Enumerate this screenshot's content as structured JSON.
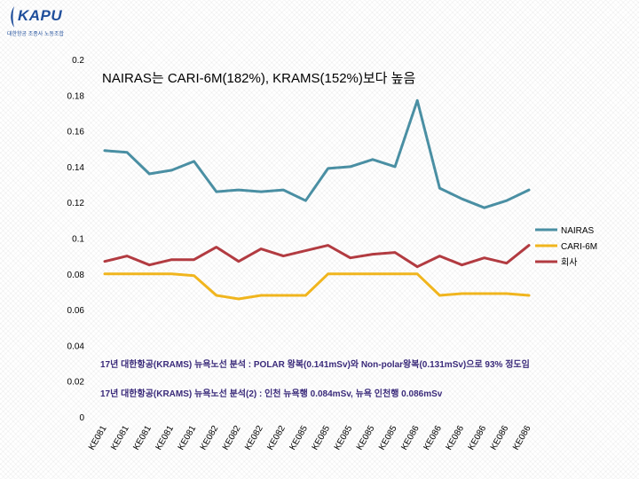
{
  "logo": {
    "text": "KAPU",
    "subtitle": "대한항공 조종사 노동조합"
  },
  "chart_data": {
    "type": "line",
    "title": "NAIRAS는 CARI-6M(182%), KRAMS(152%)보다 높음",
    "annotations": [
      "17년 대한항공(KRAMS) 뉴욕노선 분석 : POLAR 왕복(0.141mSv)와 Non-polar왕복(0.131mSv)으로 93% 정도임",
      "17년 대한항공(KRAMS) 뉴욕노선 분석(2) : 인천 뉴욕행 0.084mSv, 뉴욕 인천행 0.086mSv"
    ],
    "ylim": [
      0,
      0.2
    ],
    "yticks": [
      "0",
      "0.02",
      "0.04",
      "0.06",
      "0.08",
      "0.1",
      "0.12",
      "0.14",
      "0.16",
      "0.18",
      "0.2"
    ],
    "categories": [
      "KE081",
      "KE081",
      "KE081",
      "KE081",
      "KE081",
      "KE082",
      "KE082",
      "KE082",
      "KE082",
      "KE085",
      "KE085",
      "KE085",
      "KE085",
      "KE085",
      "KE086",
      "KE086",
      "KE086",
      "KE086",
      "KE086",
      "KE086"
    ],
    "series": [
      {
        "name": "NAIRAS",
        "color": "#4a8fa3",
        "values": [
          0.149,
          0.148,
          0.136,
          0.138,
          0.143,
          0.126,
          0.127,
          0.126,
          0.127,
          0.121,
          0.139,
          0.14,
          0.144,
          0.14,
          0.177,
          0.128,
          0.122,
          0.117,
          0.121,
          0.127
        ]
      },
      {
        "name": "CARI-6M",
        "color": "#f0b51e",
        "values": [
          0.08,
          0.08,
          0.08,
          0.08,
          0.079,
          0.068,
          0.066,
          0.068,
          0.068,
          0.068,
          0.08,
          0.08,
          0.08,
          0.08,
          0.08,
          0.068,
          0.069,
          0.069,
          0.069,
          0.068
        ]
      },
      {
        "name": "회사",
        "color": "#b23b41",
        "values": [
          0.087,
          0.09,
          0.085,
          0.088,
          0.088,
          0.095,
          0.087,
          0.094,
          0.09,
          0.093,
          0.096,
          0.089,
          0.091,
          0.092,
          0.084,
          0.09,
          0.085,
          0.089,
          0.086,
          0.096
        ]
      }
    ]
  }
}
